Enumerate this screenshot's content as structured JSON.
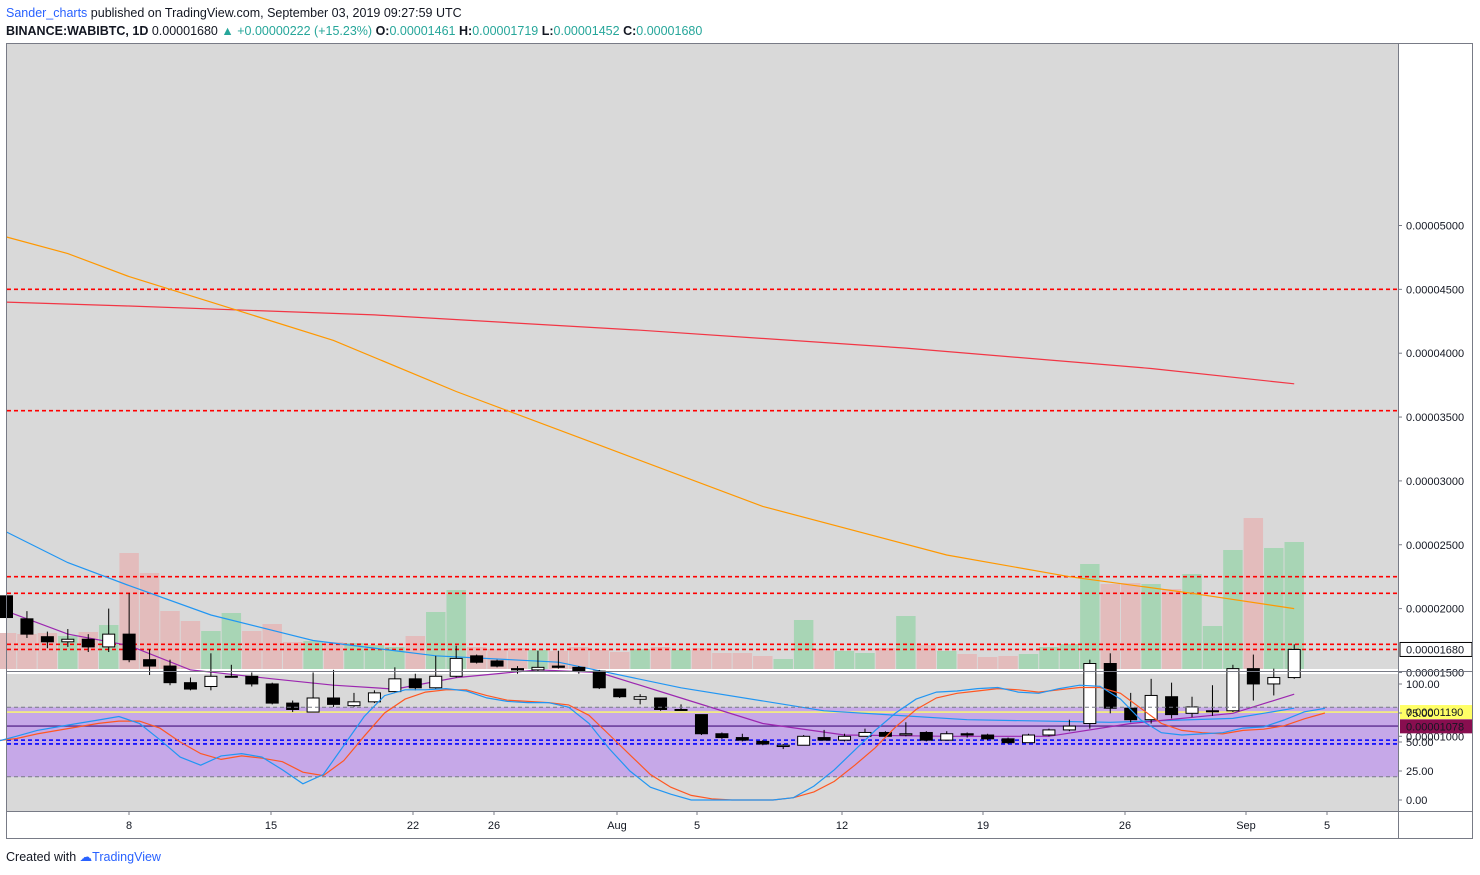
{
  "header": {
    "author": "Sander_charts",
    "published": "published on TradingView.com, September 03, 2019 09:27:59 UTC",
    "symbol": "BINANCE:WABIBTC, 1D",
    "last": "0.00001680",
    "change": "+0.00000222 (+15.23%)",
    "o_label": "O:",
    "o_value": "0.00001461",
    "h_label": "H:",
    "h_value": "0.00001719",
    "l_label": "L:",
    "l_value": "0.00001452",
    "c_label": "C:",
    "c_value": "0.00001680"
  },
  "footer": {
    "created_with": "Created with",
    "brand": "TradingView"
  },
  "colors": {
    "pane_bg": "#d9d9d9",
    "up_candle": "#ffffff",
    "down_candle": "#000000",
    "ma_red": "#f23645",
    "ma_orange": "#ff9800",
    "ma_blue": "#2196f3",
    "ma_purple": "#9c27b0",
    "support_red": "#ff0000",
    "support_blue": "#0000ff",
    "stoch_k": "#2196f3",
    "stoch_d": "#ff5722",
    "stoch_band": "#c6a8e8",
    "vol_up": "#a8d5b5",
    "vol_down": "#e3bcbc",
    "last_price_badge": "#000000",
    "label_1190": "#ffff66",
    "label_1078": "#880e4f"
  },
  "chart_data": [
    {
      "type": "candlestick",
      "x_tick_labels": [
        "8",
        "15",
        "22",
        "26",
        "Aug",
        "5",
        "12",
        "19",
        "26",
        "Sep",
        "5"
      ],
      "y_tick_labels": [
        "0.00005000",
        "0.00004500",
        "0.00004000",
        "0.00003500",
        "0.00003000",
        "0.00002500",
        "0.00002000",
        "0.00001500",
        "0.00001000"
      ],
      "ylim": [
        8.2e-06,
        5.45e-05
      ],
      "price_labels": {
        "last": "0.00001680",
        "level_1190": "0.00001190",
        "level_1078": "0.00001078"
      },
      "candles": [
        [
          2.1e-05,
          2.12e-05,
          1.93e-05,
          1.93e-05
        ],
        [
          1.92e-05,
          1.98e-05,
          1.77e-05,
          1.8e-05
        ],
        [
          1.78e-05,
          1.82e-05,
          1.69e-05,
          1.74e-05
        ],
        [
          1.74e-05,
          1.84e-05,
          1.7e-05,
          1.76e-05
        ],
        [
          1.76e-05,
          1.8e-05,
          1.66e-05,
          1.7e-05
        ],
        [
          1.7e-05,
          2e-05,
          1.66e-05,
          1.8e-05
        ],
        [
          1.8e-05,
          2.12e-05,
          1.58e-05,
          1.6e-05
        ],
        [
          1.6e-05,
          1.68e-05,
          1.48e-05,
          1.55e-05
        ],
        [
          1.55e-05,
          1.6e-05,
          1.4e-05,
          1.42e-05
        ],
        [
          1.42e-05,
          1.46e-05,
          1.36e-05,
          1.37e-05
        ],
        [
          1.39e-05,
          1.65e-05,
          1.36e-05,
          1.47e-05
        ],
        [
          1.47e-05,
          1.56e-05,
          1.46e-05,
          1.47e-05
        ],
        [
          1.47e-05,
          1.5e-05,
          1.39e-05,
          1.41e-05
        ],
        [
          1.41e-05,
          1.42e-05,
          1.25e-05,
          1.26e-05
        ],
        [
          1.26e-05,
          1.28e-05,
          1.19e-05,
          1.21e-05
        ],
        [
          1.19e-05,
          1.5e-05,
          1.19e-05,
          1.3e-05
        ],
        [
          1.3e-05,
          1.52e-05,
          1.23e-05,
          1.25e-05
        ],
        [
          1.24e-05,
          1.34e-05,
          1.23e-05,
          1.27e-05
        ],
        [
          1.27e-05,
          1.36e-05,
          1.26e-05,
          1.34e-05
        ],
        [
          1.35e-05,
          1.54e-05,
          1.34e-05,
          1.45e-05
        ],
        [
          1.45e-05,
          1.49e-05,
          1.36e-05,
          1.38e-05
        ],
        [
          1.38e-05,
          1.63e-05,
          1.37e-05,
          1.47e-05
        ],
        [
          1.47e-05,
          1.71e-05,
          1.46e-05,
          1.61e-05
        ],
        [
          1.63e-05,
          1.64e-05,
          1.57e-05,
          1.58e-05
        ],
        [
          1.59e-05,
          1.6e-05,
          1.54e-05,
          1.55e-05
        ],
        [
          1.53e-05,
          1.55e-05,
          1.49e-05,
          1.52e-05
        ],
        [
          1.52e-05,
          1.67e-05,
          1.51e-05,
          1.54e-05
        ],
        [
          1.55e-05,
          1.67e-05,
          1.53e-05,
          1.54e-05
        ],
        [
          1.54e-05,
          1.55e-05,
          1.49e-05,
          1.51e-05
        ],
        [
          1.51e-05,
          1.52e-05,
          1.37e-05,
          1.38e-05
        ],
        [
          1.37e-05,
          1.37e-05,
          1.3e-05,
          1.31e-05
        ],
        [
          1.29e-05,
          1.33e-05,
          1.25e-05,
          1.31e-05
        ],
        [
          1.3e-05,
          1.3e-05,
          1.2e-05,
          1.21e-05
        ],
        [
          1.21e-05,
          1.25e-05,
          1.2e-05,
          1.21e-05
        ],
        [
          1.17e-05,
          1.17e-05,
          1.01e-05,
          1.02e-05
        ],
        [
          1.02e-05,
          1.03e-05,
          9.8e-06,
          9.9e-06
        ],
        [
          9.9e-06,
          1.02e-05,
          9.6e-06,
          9.7e-06
        ],
        [
          9.6e-06,
          9.7e-06,
          9.3e-06,
          9.4e-06
        ],
        [
          9.2e-06,
          9.4e-06,
          9e-06,
          9.3e-06
        ],
        [
          9.3e-06,
          1.01e-05,
          9.3e-06,
          1e-05
        ],
        [
          9.9e-06,
          1.05e-05,
          9.7e-06,
          9.7e-06
        ],
        [
          9.7e-06,
          1.02e-05,
          9.6e-06,
          1e-05
        ],
        [
          1e-05,
          1.06e-05,
          1e-05,
          1.03e-05
        ],
        [
          1.03e-05,
          1.04e-05,
          9.9e-06,
          1e-05
        ],
        [
          1.01e-05,
          1.11e-05,
          1e-05,
          1.02e-05
        ],
        [
          1.03e-05,
          1.04e-05,
          9.6e-06,
          9.7e-06
        ],
        [
          9.7e-06,
          1.04e-05,
          9.7e-06,
          1.02e-05
        ],
        [
          1.02e-05,
          1.03e-05,
          9.9e-06,
          1.01e-05
        ],
        [
          1.01e-05,
          1.02e-05,
          9.7e-06,
          9.8e-06
        ],
        [
          9.8e-06,
          9.9e-06,
          9.4e-06,
          9.5e-06
        ],
        [
          9.5e-06,
          1.02e-05,
          9.5e-06,
          1.01e-05
        ],
        [
          1.01e-05,
          1.06e-05,
          1e-05,
          1.05e-05
        ],
        [
          1.05e-05,
          1.13e-05,
          1.04e-05,
          1.08e-05
        ],
        [
          1.1e-05,
          1.6e-05,
          1.06e-05,
          1.57e-05
        ],
        [
          1.57e-05,
          1.65e-05,
          1.18e-05,
          1.22e-05
        ],
        [
          1.22e-05,
          1.34e-05,
          1.11e-05,
          1.13e-05
        ],
        [
          1.13e-05,
          1.45e-05,
          1.1e-05,
          1.32e-05
        ],
        [
          1.31e-05,
          1.42e-05,
          1.14e-05,
          1.17e-05
        ],
        [
          1.18e-05,
          1.31e-05,
          1.15e-05,
          1.23e-05
        ],
        [
          1.2e-05,
          1.4e-05,
          1.16e-05,
          1.2e-05
        ],
        [
          1.2e-05,
          1.56e-05,
          1.19e-05,
          1.53e-05
        ],
        [
          1.53e-05,
          1.64e-05,
          1.28e-05,
          1.41e-05
        ],
        [
          1.41e-05,
          1.53e-05,
          1.32e-05,
          1.46e-05
        ],
        [
          1.46e-05,
          1.72e-05,
          1.45e-05,
          1.68e-05
        ]
      ],
      "volume": [
        36,
        35,
        36,
        33,
        37,
        44,
        116,
        96,
        58,
        48,
        38,
        56,
        38,
        45,
        27,
        28,
        27,
        26,
        24,
        22,
        33,
        57,
        79,
        22,
        20,
        21,
        19,
        18,
        22,
        19,
        17,
        20,
        22,
        19,
        21,
        16,
        16,
        13,
        10,
        49,
        20,
        18,
        16,
        21,
        53,
        24,
        18,
        15,
        12,
        13,
        15,
        22,
        25,
        105,
        85,
        86,
        85,
        80,
        95,
        43,
        119,
        151,
        121,
        127
      ],
      "moving_averages": {
        "ma_red": [
          [
            0,
            4.4e-05
          ],
          [
            6,
            4.37e-05
          ],
          [
            18,
            4.3e-05
          ],
          [
            31,
            4.18e-05
          ],
          [
            44,
            4.04e-05
          ],
          [
            56,
            3.88e-05
          ],
          [
            63,
            3.76e-05
          ]
        ],
        "ma_orange": [
          [
            0,
            4.91e-05
          ],
          [
            3,
            4.78e-05
          ],
          [
            6,
            4.6e-05
          ],
          [
            10,
            4.4e-05
          ],
          [
            16,
            4.1e-05
          ],
          [
            22,
            3.7e-05
          ],
          [
            29,
            3.28e-05
          ],
          [
            37,
            2.8e-05
          ],
          [
            46,
            2.42e-05
          ],
          [
            52,
            2.25e-05
          ],
          [
            58,
            2.12e-05
          ],
          [
            63,
            2e-05
          ]
        ],
        "ma_blue": [
          [
            0,
            2.6e-05
          ],
          [
            3,
            2.36e-05
          ],
          [
            6,
            2.18e-05
          ],
          [
            10,
            1.95e-05
          ],
          [
            15,
            1.75e-05
          ],
          [
            21,
            1.63e-05
          ],
          [
            27,
            1.58e-05
          ],
          [
            33,
            1.38e-05
          ],
          [
            40,
            1.2e-05
          ],
          [
            47,
            1.13e-05
          ],
          [
            54,
            1.11e-05
          ],
          [
            60,
            1.14e-05
          ],
          [
            63,
            1.22e-05
          ]
        ],
        "ma_purple": [
          [
            0,
            1.98e-05
          ],
          [
            3,
            1.8e-05
          ],
          [
            6,
            1.71e-05
          ],
          [
            9,
            1.52e-05
          ],
          [
            13,
            1.45e-05
          ],
          [
            16,
            1.4e-05
          ],
          [
            19,
            1.37e-05
          ],
          [
            22,
            1.46e-05
          ],
          [
            26,
            1.52e-05
          ],
          [
            29,
            1.5e-05
          ],
          [
            33,
            1.3e-05
          ],
          [
            37,
            1.1e-05
          ],
          [
            41,
            1.01e-05
          ],
          [
            46,
            1e-05
          ],
          [
            51,
            1e-05
          ],
          [
            55,
            1.1e-05
          ],
          [
            60,
            1.18e-05
          ],
          [
            63,
            1.33e-05
          ]
        ]
      },
      "support_lines": {
        "red": [
          4.5e-05,
          3.55e-05,
          2.25e-05,
          2.12e-05,
          1.72e-05,
          1.68e-05
        ],
        "blue": [
          9.7e-06,
          9.4e-06
        ],
        "purple": [
          1.08e-05
        ],
        "yellow": [
          1.19e-05
        ]
      }
    },
    {
      "type": "line",
      "name_k": "",
      "y_tick_labels": [
        "100.00",
        "75.00",
        "50.00",
        "25.00",
        "0.00"
      ],
      "ylim": [
        0,
        100
      ],
      "band": [
        20,
        80
      ],
      "k": [
        [
          -2,
          48
        ],
        [
          1,
          55
        ],
        [
          3,
          60
        ],
        [
          5,
          63
        ],
        [
          7,
          66
        ],
        [
          9,
          69
        ],
        [
          11,
          72
        ],
        [
          13,
          66
        ],
        [
          15,
          52
        ],
        [
          17,
          37
        ],
        [
          19,
          30
        ],
        [
          21,
          38
        ],
        [
          23,
          40
        ],
        [
          25,
          37
        ],
        [
          27,
          26
        ],
        [
          29,
          14
        ],
        [
          31,
          22
        ],
        [
          33,
          47
        ],
        [
          35,
          72
        ],
        [
          37,
          90
        ],
        [
          39,
          95
        ],
        [
          41,
          95
        ],
        [
          43,
          96
        ],
        [
          45,
          94
        ],
        [
          47,
          88
        ],
        [
          49,
          85
        ],
        [
          51,
          84
        ],
        [
          53,
          84
        ],
        [
          55,
          80
        ],
        [
          57,
          66
        ],
        [
          59,
          44
        ],
        [
          61,
          25
        ],
        [
          63,
          11
        ],
        [
          65,
          5
        ],
        [
          67,
          0
        ],
        [
          69,
          0
        ],
        [
          71,
          0
        ],
        [
          73,
          0
        ],
        [
          75,
          0
        ],
        [
          77,
          2
        ],
        [
          79,
          12
        ],
        [
          81,
          26
        ],
        [
          83,
          43
        ],
        [
          85,
          60
        ],
        [
          87,
          75
        ],
        [
          89,
          87
        ],
        [
          91,
          93
        ],
        [
          93,
          94
        ],
        [
          95,
          96
        ],
        [
          97,
          97
        ],
        [
          99,
          93
        ],
        [
          101,
          92
        ],
        [
          103,
          96
        ],
        [
          105,
          99
        ],
        [
          107,
          98
        ],
        [
          109,
          87
        ],
        [
          111,
          69
        ],
        [
          113,
          58
        ],
        [
          115,
          56
        ],
        [
          117,
          57
        ],
        [
          119,
          58
        ],
        [
          121,
          62
        ],
        [
          123,
          63
        ],
        [
          125,
          69
        ],
        [
          127,
          76
        ],
        [
          129,
          79
        ]
      ],
      "d": [
        [
          -2,
          50
        ],
        [
          1,
          53
        ],
        [
          3,
          57
        ],
        [
          5,
          60
        ],
        [
          7,
          63
        ],
        [
          9,
          66
        ],
        [
          11,
          68
        ],
        [
          13,
          68
        ],
        [
          15,
          62
        ],
        [
          17,
          50
        ],
        [
          19,
          40
        ],
        [
          21,
          35
        ],
        [
          23,
          38
        ],
        [
          25,
          36
        ],
        [
          27,
          33
        ],
        [
          29,
          24
        ],
        [
          31,
          21
        ],
        [
          33,
          34
        ],
        [
          35,
          55
        ],
        [
          37,
          75
        ],
        [
          39,
          87
        ],
        [
          41,
          93
        ],
        [
          43,
          95
        ],
        [
          45,
          95
        ],
        [
          47,
          90
        ],
        [
          49,
          86
        ],
        [
          51,
          85
        ],
        [
          53,
          84
        ],
        [
          55,
          82
        ],
        [
          57,
          73
        ],
        [
          59,
          56
        ],
        [
          61,
          39
        ],
        [
          63,
          22
        ],
        [
          65,
          11
        ],
        [
          67,
          4
        ],
        [
          69,
          1
        ],
        [
          71,
          0
        ],
        [
          73,
          0
        ],
        [
          75,
          0
        ],
        [
          77,
          2
        ],
        [
          79,
          7
        ],
        [
          81,
          16
        ],
        [
          83,
          30
        ],
        [
          85,
          45
        ],
        [
          87,
          63
        ],
        [
          89,
          78
        ],
        [
          91,
          88
        ],
        [
          93,
          92
        ],
        [
          95,
          94
        ],
        [
          97,
          96
        ],
        [
          99,
          95
        ],
        [
          101,
          93
        ],
        [
          103,
          95
        ],
        [
          105,
          97
        ],
        [
          107,
          97
        ],
        [
          109,
          92
        ],
        [
          111,
          79
        ],
        [
          113,
          66
        ],
        [
          115,
          60
        ],
        [
          117,
          58
        ],
        [
          119,
          57
        ],
        [
          121,
          60
        ],
        [
          123,
          61
        ],
        [
          125,
          64
        ],
        [
          127,
          70
        ],
        [
          129,
          75
        ]
      ]
    }
  ]
}
